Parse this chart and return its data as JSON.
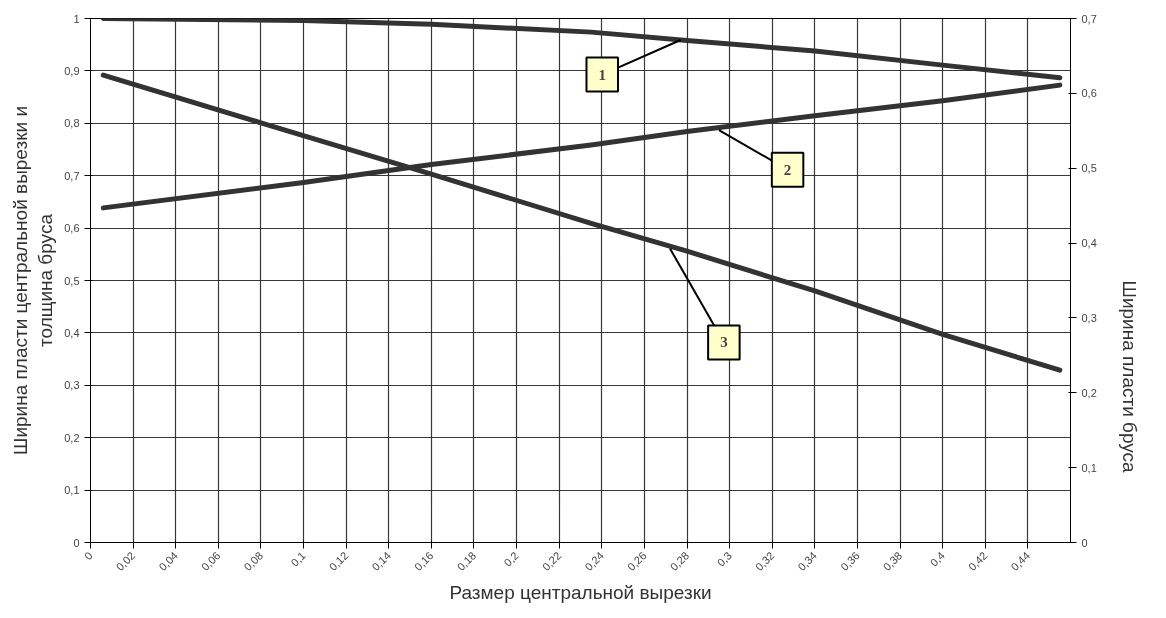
{
  "chart_data": {
    "type": "line",
    "xlabel": "Размер центральной вырезки",
    "ylabel": "Ширина пласти центральной вырезки и\nтолщина бруса",
    "y2label": "Ширина пласти бруса",
    "xlim": [
      0,
      0.46
    ],
    "ylim": [
      0,
      1
    ],
    "y2lim": [
      0,
      0.7
    ],
    "xticks": [
      0,
      {
        "value": 0.02,
        "label": "0,02"
      },
      {
        "value": 0.04,
        "label": "0,04"
      },
      {
        "value": 0.06,
        "label": "0,06"
      },
      {
        "value": 0.08,
        "label": "0,08"
      },
      {
        "value": 0.1,
        "label": "0,1"
      },
      {
        "value": 0.12,
        "label": "0,12"
      },
      {
        "value": 0.14,
        "label": "0,14"
      },
      {
        "value": 0.16,
        "label": "0,16"
      },
      {
        "value": 0.18,
        "label": "0,18"
      },
      {
        "value": 0.2,
        "label": "0,2"
      },
      {
        "value": 0.22,
        "label": "0,22"
      },
      {
        "value": 0.24,
        "label": "0,24"
      },
      {
        "value": 0.26,
        "label": "0,26"
      },
      {
        "value": 0.28,
        "label": "0,28"
      },
      {
        "value": 0.3,
        "label": "0,3"
      },
      {
        "value": 0.32,
        "label": "0,32"
      },
      {
        "value": 0.34,
        "label": "0,34"
      },
      {
        "value": 0.36,
        "label": "0,36"
      },
      {
        "value": 0.38,
        "label": "0,38"
      },
      {
        "value": 0.4,
        "label": "0,4"
      },
      {
        "value": 0.42,
        "label": "0,42"
      },
      {
        "value": 0.44,
        "label": "0,44"
      }
    ],
    "yticks": [
      0,
      {
        "value": 0.1,
        "label": "0,1"
      },
      {
        "value": 0.2,
        "label": "0,2"
      },
      {
        "value": 0.3,
        "label": "0,3"
      },
      {
        "value": 0.4,
        "label": "0,4"
      },
      {
        "value": 0.5,
        "label": "0,5"
      },
      {
        "value": 0.6,
        "label": "0,6"
      },
      {
        "value": 0.7,
        "label": "0,7"
      },
      {
        "value": 0.8,
        "label": "0,8"
      },
      {
        "value": 0.9,
        "label": "0,9"
      },
      1
    ],
    "y2ticks": [
      0,
      {
        "value": 0.1,
        "label": "0,1"
      },
      {
        "value": 0.2,
        "label": "0,2"
      },
      {
        "value": 0.3,
        "label": "0,3"
      },
      {
        "value": 0.4,
        "label": "0,4"
      },
      {
        "value": 0.5,
        "label": "0,5"
      },
      {
        "value": 0.6,
        "label": "0,6"
      },
      {
        "value": 0.7,
        "label": "0,7"
      }
    ],
    "x": [
      0.006,
      0.1,
      0.16,
      0.235,
      0.28,
      0.34,
      0.4,
      0.455
    ],
    "series": [
      {
        "color": "#333333",
        "values": [
          1.0,
          0.996,
          0.989,
          0.974,
          0.958,
          0.938,
          0.911,
          0.887
        ]
      },
      {
        "color": "#333333",
        "axis": "y2",
        "values": [
          0.447,
          0.481,
          0.505,
          0.531,
          0.549,
          0.57,
          0.59,
          0.611
        ]
      },
      {
        "color": "#333333",
        "x": [
          0.006,
          0.08,
          0.16,
          0.235,
          0.28,
          0.34,
          0.4,
          0.455
        ],
        "values": [
          0.892,
          0.801,
          0.703,
          0.609,
          0.556,
          0.48,
          0.397,
          0.329
        ]
      }
    ],
    "annotations": [
      {
        "text": "1",
        "x": 0.277,
        "y": 0.959
      },
      {
        "text": "2",
        "x": 0.295,
        "y": 0.787
      },
      {
        "text": "3",
        "x": 0.272,
        "y": 0.561
      }
    ],
    "grid": true,
    "marker": "none",
    "line_style": "solid"
  }
}
